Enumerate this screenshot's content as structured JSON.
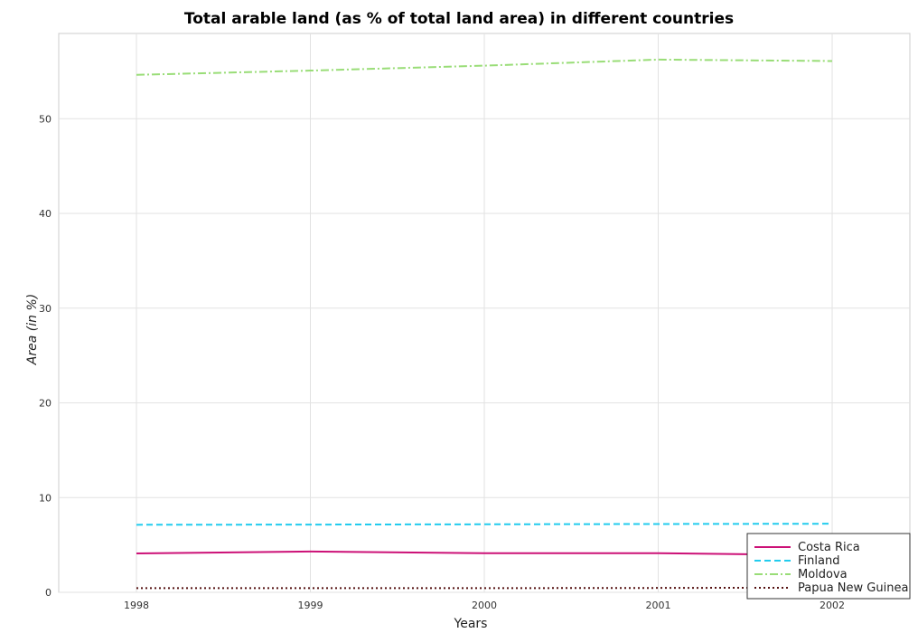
{
  "chart_data": {
    "type": "line",
    "title": "Total arable land (as % of total land area) in different countries",
    "xlabel": "Years",
    "ylabel": "Area (in %)",
    "x": [
      "1998",
      "1999",
      "2000",
      "2001",
      "2002"
    ],
    "ylim": [
      0,
      59
    ],
    "yticks": [
      0,
      10,
      20,
      30,
      40,
      50
    ],
    "grid": true,
    "legend_position": "bottom-right",
    "series": [
      {
        "name": "Costa Rica",
        "color": "#cc1177",
        "dash": "solid",
        "values": [
          4.11,
          4.31,
          4.13,
          4.13,
          3.92
        ]
      },
      {
        "name": "Finland",
        "color": "#22ccee",
        "dash": "dashed",
        "values": [
          7.13,
          7.15,
          7.18,
          7.21,
          7.24
        ]
      },
      {
        "name": "Moldova",
        "color": "#99dd77",
        "dash": "dashdot",
        "values": [
          54.63,
          55.08,
          55.6,
          56.24,
          56.09
        ]
      },
      {
        "name": "Papua New Guinea",
        "color": "#551111",
        "dash": "dotted",
        "values": [
          0.44,
          0.44,
          0.44,
          0.46,
          0.5
        ]
      }
    ]
  }
}
